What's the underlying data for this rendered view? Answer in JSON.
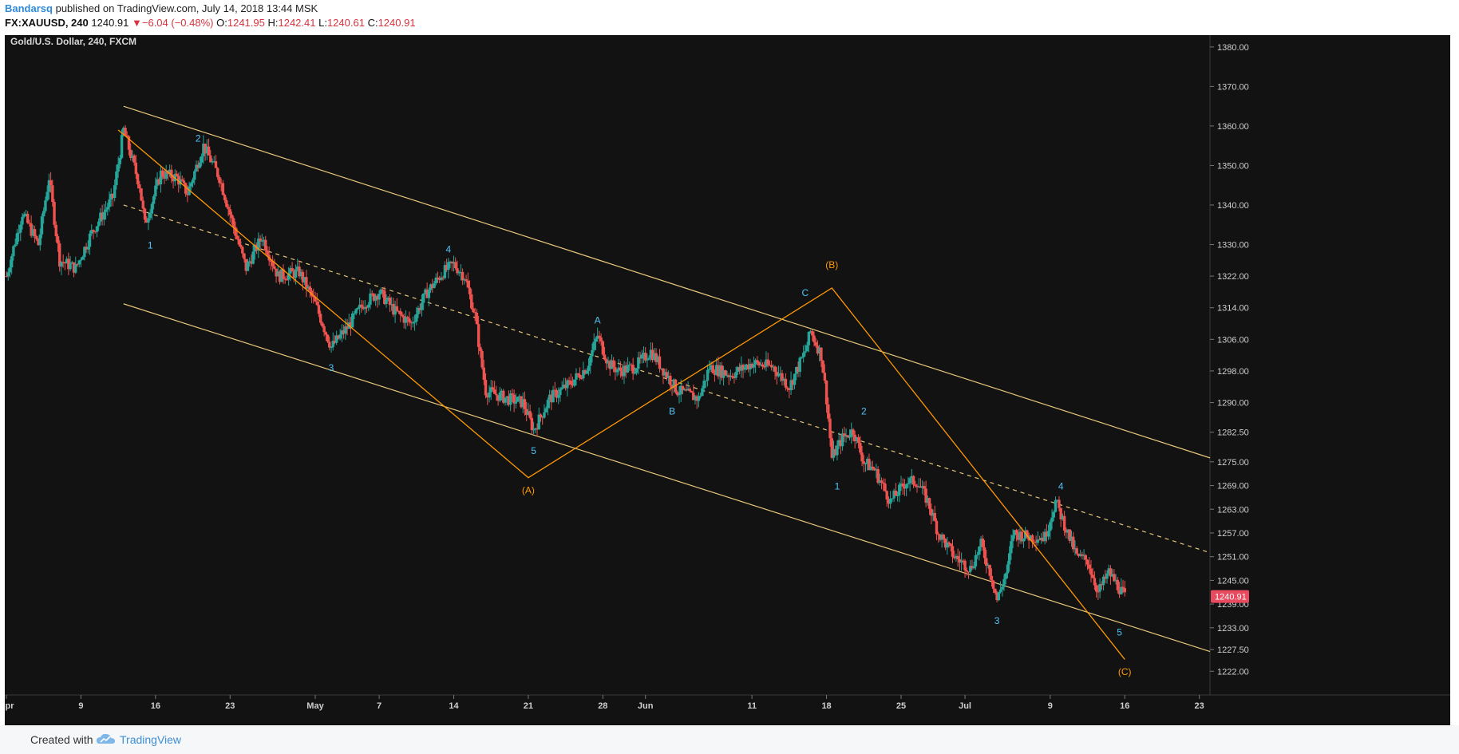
{
  "header": {
    "author": "Bandarsq",
    "published_text": "published on TradingView.com, July 14, 2018 13:44 MSK",
    "symbol": "FX:XAUUSD, 240",
    "last": "1240.91",
    "change": "−6.04 (−0.48%)",
    "o_label": "O:",
    "o": "1241.95",
    "h_label": "H:",
    "h": "1242.41",
    "l_label": "L:",
    "l": "1240.61",
    "c_label": "C:",
    "c": "1240.91"
  },
  "footer": {
    "created_with": "Created with",
    "brand": "TradingView"
  },
  "colors": {
    "background": "#121212",
    "up": "#26a69a",
    "down": "#ef5350",
    "channel": "#e8c77b",
    "wave": "#ff9800",
    "label_blue": "#4fc3f7",
    "price_tag": "#e84a5f"
  },
  "chart_data": {
    "type": "candlestick",
    "title": "Gold/U.S. Dollar, 240, FXCM",
    "last_price": "1240.91",
    "x_ticks": [
      {
        "label": "Apr",
        "t": 0
      },
      {
        "label": "9",
        "t": 7
      },
      {
        "label": "16",
        "t": 14
      },
      {
        "label": "23",
        "t": 21
      },
      {
        "label": "May",
        "t": 29
      },
      {
        "label": "7",
        "t": 35
      },
      {
        "label": "14",
        "t": 42
      },
      {
        "label": "21",
        "t": 49
      },
      {
        "label": "28",
        "t": 56
      },
      {
        "label": "Jun",
        "t": 60
      },
      {
        "label": "11",
        "t": 70
      },
      {
        "label": "18",
        "t": 77
      },
      {
        "label": "25",
        "t": 84
      },
      {
        "label": "Jul",
        "t": 90
      },
      {
        "label": "9",
        "t": 98
      },
      {
        "label": "16",
        "t": 105
      },
      {
        "label": "23",
        "t": 112
      }
    ],
    "y_ticks": [
      1222,
      1227.5,
      1233,
      1239,
      1245,
      1251,
      1257,
      1263,
      1269,
      1275,
      1282.5,
      1290,
      1298,
      1306,
      1314,
      1322,
      1330,
      1340,
      1350,
      1360,
      1370,
      1380
    ],
    "y_tick_labels": [
      "1222.00",
      "1227.50",
      "1233.00",
      "1239.00",
      "1245.00",
      "1251.00",
      "1257.00",
      "1263.00",
      "1269.00",
      "1275.00",
      "1282.50",
      "1290.00",
      "1298.00",
      "1306.00",
      "1314.00",
      "1322.00",
      "1330.00",
      "1340.00",
      "1350.00",
      "1360.00",
      "1370.00",
      "1380.00"
    ],
    "xlim": [
      0,
      113
    ],
    "ylim": [
      1216,
      1383
    ],
    "price_path": [
      {
        "t": 0,
        "p": 1322
      },
      {
        "t": 1.5,
        "p": 1338
      },
      {
        "t": 3,
        "p": 1330
      },
      {
        "t": 4,
        "p": 1347
      },
      {
        "t": 5,
        "p": 1326
      },
      {
        "t": 6.5,
        "p": 1324
      },
      {
        "t": 8,
        "p": 1333
      },
      {
        "t": 10,
        "p": 1342
      },
      {
        "t": 11,
        "p": 1359
      },
      {
        "t": 12.5,
        "p": 1345
      },
      {
        "t": 13,
        "p": 1335
      },
      {
        "t": 14.5,
        "p": 1348
      },
      {
        "t": 16,
        "p": 1347
      },
      {
        "t": 17,
        "p": 1343
      },
      {
        "t": 18.5,
        "p": 1355
      },
      {
        "t": 20,
        "p": 1347
      },
      {
        "t": 21.5,
        "p": 1333
      },
      {
        "t": 22.5,
        "p": 1324
      },
      {
        "t": 24,
        "p": 1332
      },
      {
        "t": 25.5,
        "p": 1322
      },
      {
        "t": 27.5,
        "p": 1323
      },
      {
        "t": 29,
        "p": 1315
      },
      {
        "t": 30.5,
        "p": 1304
      },
      {
        "t": 32,
        "p": 1309
      },
      {
        "t": 33.5,
        "p": 1315
      },
      {
        "t": 35,
        "p": 1318
      },
      {
        "t": 36.5,
        "p": 1313
      },
      {
        "t": 38,
        "p": 1310
      },
      {
        "t": 39.5,
        "p": 1318
      },
      {
        "t": 41,
        "p": 1323
      },
      {
        "t": 42,
        "p": 1325
      },
      {
        "t": 43,
        "p": 1322
      },
      {
        "t": 44,
        "p": 1312
      },
      {
        "t": 44.5,
        "p": 1302
      },
      {
        "t": 45,
        "p": 1293
      },
      {
        "t": 47,
        "p": 1291
      },
      {
        "t": 48.5,
        "p": 1290
      },
      {
        "t": 49.5,
        "p": 1283
      },
      {
        "t": 51,
        "p": 1291
      },
      {
        "t": 53,
        "p": 1295
      },
      {
        "t": 54.5,
        "p": 1299
      },
      {
        "t": 55.5,
        "p": 1307
      },
      {
        "t": 56.5,
        "p": 1300
      },
      {
        "t": 57.5,
        "p": 1298
      },
      {
        "t": 59,
        "p": 1299
      },
      {
        "t": 60.5,
        "p": 1303
      },
      {
        "t": 62,
        "p": 1297
      },
      {
        "t": 63,
        "p": 1293
      },
      {
        "t": 65,
        "p": 1291
      },
      {
        "t": 66,
        "p": 1299
      },
      {
        "t": 68,
        "p": 1297
      },
      {
        "t": 70,
        "p": 1300
      },
      {
        "t": 72,
        "p": 1299
      },
      {
        "t": 73.5,
        "p": 1294
      },
      {
        "t": 75,
        "p": 1303
      },
      {
        "t": 75.5,
        "p": 1308
      },
      {
        "t": 76.5,
        "p": 1302
      },
      {
        "t": 77,
        "p": 1291
      },
      {
        "t": 77.5,
        "p": 1276
      },
      {
        "t": 78.5,
        "p": 1281
      },
      {
        "t": 79.5,
        "p": 1283
      },
      {
        "t": 80.5,
        "p": 1275
      },
      {
        "t": 81.5,
        "p": 1273
      },
      {
        "t": 83,
        "p": 1265
      },
      {
        "t": 84.5,
        "p": 1270
      },
      {
        "t": 85.5,
        "p": 1270
      },
      {
        "t": 86.5,
        "p": 1265
      },
      {
        "t": 87.5,
        "p": 1257
      },
      {
        "t": 89,
        "p": 1251
      },
      {
        "t": 90.5,
        "p": 1248
      },
      {
        "t": 91.5,
        "p": 1254
      },
      {
        "t": 92.5,
        "p": 1246
      },
      {
        "t": 93,
        "p": 1240
      },
      {
        "t": 94,
        "p": 1248
      },
      {
        "t": 94.5,
        "p": 1257
      },
      {
        "t": 96,
        "p": 1256
      },
      {
        "t": 97.5,
        "p": 1256
      },
      {
        "t": 98.5,
        "p": 1265
      },
      {
        "t": 99.5,
        "p": 1258
      },
      {
        "t": 100.5,
        "p": 1251
      },
      {
        "t": 101.5,
        "p": 1250
      },
      {
        "t": 102.5,
        "p": 1242
      },
      {
        "t": 103.5,
        "p": 1247
      },
      {
        "t": 104.5,
        "p": 1243
      },
      {
        "t": 105,
        "p": 1240.91
      }
    ],
    "channel": {
      "upper": [
        {
          "t": 11,
          "p": 1365
        },
        {
          "t": 113,
          "p": 1276
        }
      ],
      "middle": [
        {
          "t": 11,
          "p": 1340
        },
        {
          "t": 113,
          "p": 1252
        }
      ],
      "lower": [
        {
          "t": 11,
          "p": 1315
        },
        {
          "t": 113,
          "p": 1227
        }
      ]
    },
    "wave_lines": [
      [
        {
          "t": 10.5,
          "p": 1359
        },
        {
          "t": 49,
          "p": 1271
        },
        {
          "t": 77.5,
          "p": 1319
        },
        {
          "t": 105,
          "p": 1225
        }
      ]
    ],
    "wave_labels": [
      {
        "text": "2",
        "t": 18,
        "p": 1356,
        "color": "blue"
      },
      {
        "text": "1",
        "t": 13.5,
        "p": 1329,
        "color": "blue"
      },
      {
        "text": "3",
        "t": 30.5,
        "p": 1298,
        "color": "blue"
      },
      {
        "text": "4",
        "t": 41.5,
        "p": 1328,
        "color": "blue"
      },
      {
        "text": "5",
        "t": 49.5,
        "p": 1277,
        "color": "blue"
      },
      {
        "text": "(A)",
        "t": 49,
        "p": 1267,
        "color": "orange"
      },
      {
        "text": "A",
        "t": 55.5,
        "p": 1310,
        "color": "blue"
      },
      {
        "text": "B",
        "t": 62.5,
        "p": 1287,
        "color": "blue"
      },
      {
        "text": "C",
        "t": 75,
        "p": 1317,
        "color": "blue"
      },
      {
        "text": "(B)",
        "t": 77.5,
        "p": 1324,
        "color": "orange"
      },
      {
        "text": "2",
        "t": 80.5,
        "p": 1287,
        "color": "blue"
      },
      {
        "text": "1",
        "t": 78,
        "p": 1268,
        "color": "blue"
      },
      {
        "text": "3",
        "t": 93,
        "p": 1234,
        "color": "blue"
      },
      {
        "text": "4",
        "t": 99,
        "p": 1268,
        "color": "blue"
      },
      {
        "text": "5",
        "t": 104.5,
        "p": 1231,
        "color": "blue"
      },
      {
        "text": "(C)",
        "t": 105,
        "p": 1221,
        "color": "orange"
      }
    ]
  }
}
